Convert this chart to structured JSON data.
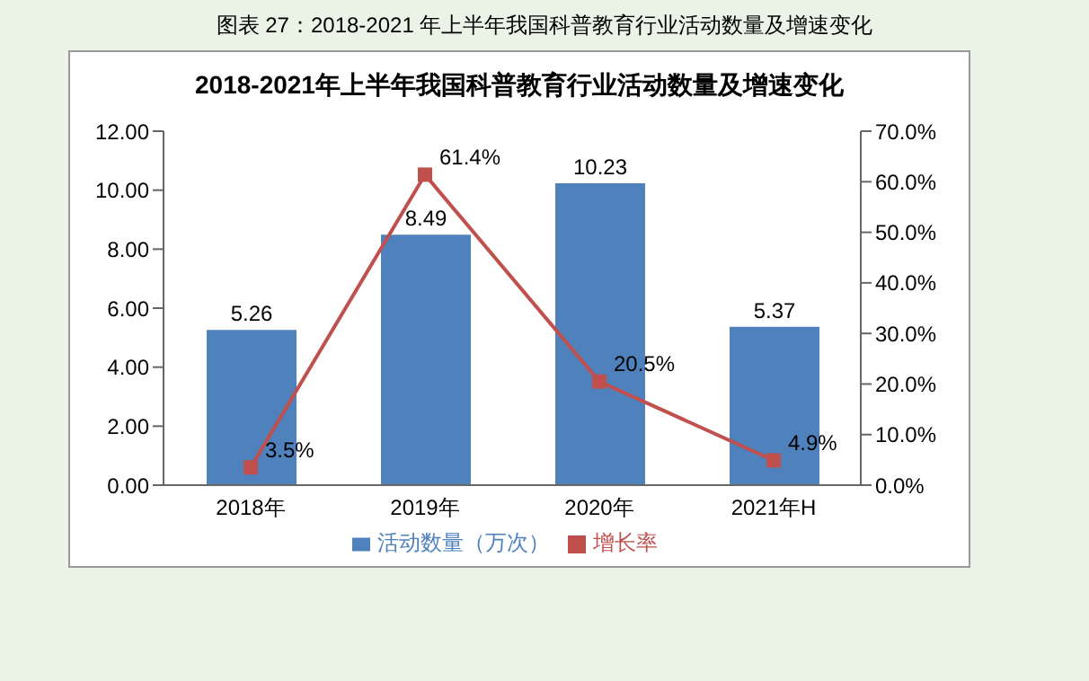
{
  "chart_data": {
    "type": "bar",
    "title": "图表 27：2018-2021 年上半年我国科普教育行业活动数量及增速变化",
    "subtitle": "2018-2021年上半年我国科普教育行业活动数量及增速变化",
    "categories": [
      "2018年",
      "2019年",
      "2020年",
      "2021年H"
    ],
    "series": [
      {
        "name": "活动数量（万次）",
        "color": "#4f81bd",
        "values": [
          5.26,
          8.49,
          10.23,
          5.37
        ],
        "value_labels": [
          "5.26",
          "8.49",
          "10.23",
          "5.37"
        ]
      },
      {
        "name": "增长率",
        "type": "line",
        "axis": "y2",
        "color": "#c0504d",
        "marker": "square",
        "values": [
          3.5,
          61.4,
          20.5,
          4.9
        ],
        "value_labels": [
          "3.5%",
          "61.4%",
          "20.5%",
          "4.9%"
        ]
      }
    ],
    "ylim": [
      0,
      12
    ],
    "yticks": [
      {
        "value": 0,
        "label": "0.00"
      },
      {
        "value": 2,
        "label": "2.00"
      },
      {
        "value": 4,
        "label": "4.00"
      },
      {
        "value": 6,
        "label": "6.00"
      },
      {
        "value": 8,
        "label": "8.00"
      },
      {
        "value": 10,
        "label": "10.00"
      },
      {
        "value": 12,
        "label": "12.00"
      }
    ],
    "y2lim": [
      0,
      70
    ],
    "y2ticks": [
      {
        "value": 0,
        "label": "0.0%"
      },
      {
        "value": 10,
        "label": "10.0%"
      },
      {
        "value": 20,
        "label": "20.0%"
      },
      {
        "value": 30,
        "label": "30.0%"
      },
      {
        "value": 40,
        "label": "40.0%"
      },
      {
        "value": 50,
        "label": "50.0%"
      },
      {
        "value": 60,
        "label": "60.0%"
      },
      {
        "value": 70,
        "label": "70.0%"
      }
    ],
    "grid": false,
    "legend": "bottom"
  }
}
